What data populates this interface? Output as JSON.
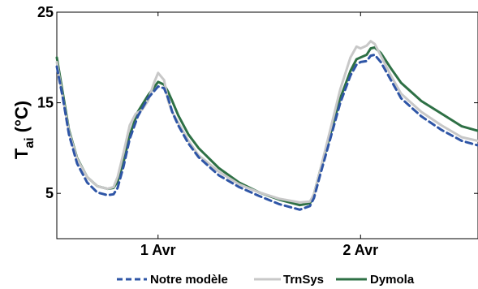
{
  "chart_data": {
    "type": "line",
    "title": "",
    "xlabel": "",
    "ylabel": "T",
    "ylabel_subscript": "ai",
    "ylabel_unit": " (°C)",
    "xlim": [
      0,
      2.08
    ],
    "ylim": [
      0,
      25
    ],
    "x_ticks": [
      {
        "value": 0.5,
        "label": "1 Avr"
      },
      {
        "value": 1.5,
        "label": "2 Avr"
      }
    ],
    "y_ticks": [
      {
        "value": 5,
        "label": "5"
      },
      {
        "value": 15,
        "label": "15"
      },
      {
        "value": 25,
        "label": "25"
      }
    ],
    "grid": false,
    "legend_position": "bottom",
    "series": [
      {
        "name": "Notre modèle",
        "color": "#2e55a6",
        "dash": "dashed",
        "x": [
          0,
          0.03,
          0.06,
          0.1,
          0.15,
          0.2,
          0.25,
          0.28,
          0.3,
          0.33,
          0.36,
          0.4,
          0.45,
          0.5,
          0.53,
          0.55,
          0.57,
          0.6,
          0.65,
          0.7,
          0.8,
          0.9,
          1.0,
          1.1,
          1.2,
          1.25,
          1.27,
          1.3,
          1.35,
          1.4,
          1.45,
          1.48,
          1.5,
          1.53,
          1.55,
          1.57,
          1.6,
          1.65,
          1.7,
          1.8,
          1.9,
          2.0,
          2.08
        ],
        "values": [
          19.0,
          15.5,
          11.5,
          8.3,
          6.2,
          5.1,
          4.8,
          4.9,
          5.6,
          8.0,
          11.0,
          13.5,
          15.5,
          16.8,
          16.6,
          15.5,
          14.0,
          12.5,
          10.5,
          9.0,
          7.0,
          5.7,
          4.7,
          3.8,
          3.2,
          3.6,
          4.5,
          7.0,
          11.0,
          15.0,
          18.0,
          19.2,
          19.5,
          19.6,
          20.2,
          20.3,
          19.5,
          17.5,
          15.5,
          13.5,
          12.0,
          10.8,
          10.3
        ]
      },
      {
        "name": "TrnSys",
        "color": "#c8c8c8",
        "dash": "solid",
        "x": [
          0,
          0.03,
          0.06,
          0.1,
          0.15,
          0.2,
          0.25,
          0.28,
          0.3,
          0.33,
          0.36,
          0.39,
          0.42,
          0.45,
          0.48,
          0.5,
          0.53,
          0.55,
          0.57,
          0.6,
          0.65,
          0.7,
          0.8,
          0.9,
          1.0,
          1.1,
          1.2,
          1.25,
          1.27,
          1.3,
          1.35,
          1.4,
          1.45,
          1.48,
          1.5,
          1.53,
          1.55,
          1.57,
          1.6,
          1.65,
          1.7,
          1.8,
          1.9,
          2.0,
          2.08
        ],
        "values": [
          19.5,
          15.5,
          11.8,
          8.8,
          6.8,
          5.8,
          5.5,
          5.7,
          6.8,
          9.5,
          12.5,
          13.8,
          14.2,
          15.2,
          17.2,
          18.3,
          17.5,
          15.2,
          14.0,
          12.8,
          10.8,
          9.2,
          7.4,
          6.0,
          5.1,
          4.4,
          4.0,
          4.1,
          4.9,
          7.5,
          12.0,
          16.5,
          20.0,
          21.2,
          21.0,
          21.3,
          21.8,
          21.5,
          20.2,
          18.0,
          16.0,
          14.0,
          12.5,
          11.2,
          10.8
        ]
      },
      {
        "name": "Dymola",
        "color": "#2e7045",
        "dash": "solid",
        "x": [
          0,
          0.03,
          0.06,
          0.1,
          0.15,
          0.2,
          0.25,
          0.28,
          0.3,
          0.33,
          0.36,
          0.4,
          0.45,
          0.5,
          0.53,
          0.55,
          0.57,
          0.6,
          0.65,
          0.7,
          0.8,
          0.9,
          1.0,
          1.1,
          1.2,
          1.25,
          1.27,
          1.3,
          1.35,
          1.4,
          1.45,
          1.48,
          1.5,
          1.53,
          1.55,
          1.57,
          1.6,
          1.65,
          1.7,
          1.8,
          1.9,
          2.0,
          2.08
        ],
        "values": [
          20.0,
          16.0,
          12.0,
          8.9,
          6.8,
          5.8,
          5.5,
          5.6,
          6.3,
          8.5,
          11.4,
          14.0,
          15.8,
          17.3,
          17.0,
          16.2,
          15.2,
          13.6,
          11.5,
          10.0,
          7.8,
          6.2,
          5.1,
          4.3,
          3.7,
          3.9,
          4.9,
          7.5,
          11.5,
          15.5,
          18.5,
          19.8,
          20.0,
          20.3,
          21.0,
          21.1,
          20.5,
          18.8,
          17.2,
          15.2,
          13.8,
          12.4,
          11.9
        ]
      }
    ]
  }
}
